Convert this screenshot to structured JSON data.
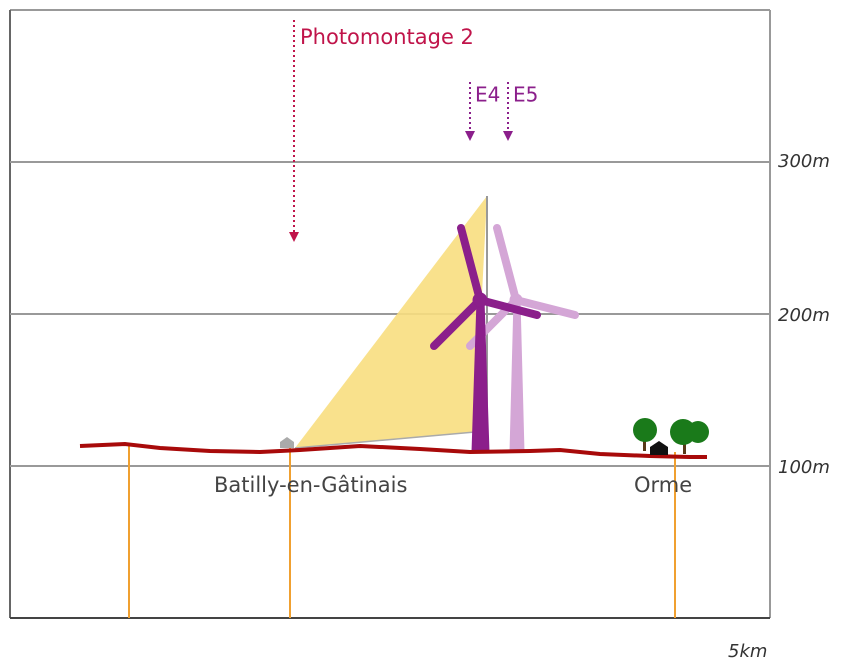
{
  "header": {
    "marker": "Photomontage 2",
    "turbines": [
      "E4",
      "E5"
    ]
  },
  "axis": {
    "heights": [
      "300m",
      "200m",
      "100m"
    ],
    "distance": "5km"
  },
  "places": [
    "Batilly-en-Gâtinais",
    "Orme"
  ]
}
